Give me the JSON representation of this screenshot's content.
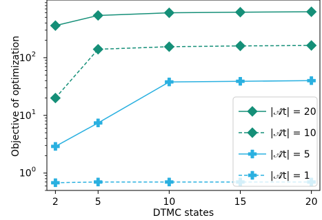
{
  "chart_data": {
    "type": "line",
    "title": "",
    "xlabel": "DTMC states",
    "ylabel": "Objective of optimization",
    "x": [
      2,
      5,
      10,
      15,
      20
    ],
    "xlim": [
      1.4,
      20.6
    ],
    "yscale": "log",
    "ylim": [
      0.5,
      1000
    ],
    "x_ticks": [
      2,
      5,
      10,
      15,
      20
    ],
    "y_ticks": [
      {
        "base": "10",
        "exp": "0",
        "value": 1
      },
      {
        "base": "10",
        "exp": "1",
        "value": 10
      },
      {
        "base": "10",
        "exp": "2",
        "value": 100
      }
    ],
    "grid": false,
    "legend_position": "lower-right",
    "series": [
      {
        "name": "|𝒜̂t| = 20",
        "color": "#158f78",
        "marker": "diamond",
        "linestyle": "solid",
        "values": [
          360,
          540,
          600,
          615,
          625
        ]
      },
      {
        "name": "|𝒜̂t| = 10",
        "color": "#158f78",
        "marker": "diamond",
        "linestyle": "dashed",
        "values": [
          20,
          140,
          155,
          160,
          163
        ]
      },
      {
        "name": "|𝒜̂t| = 5",
        "color": "#2ab0e0",
        "marker": "plus",
        "linestyle": "solid",
        "values": [
          2.9,
          7.4,
          38,
          39,
          40
        ]
      },
      {
        "name": "|𝒜̂t| = 1",
        "color": "#2ab0e0",
        "marker": "plus",
        "linestyle": "dashed",
        "values": [
          0.68,
          0.7,
          0.7,
          0.7,
          0.7
        ]
      }
    ]
  }
}
